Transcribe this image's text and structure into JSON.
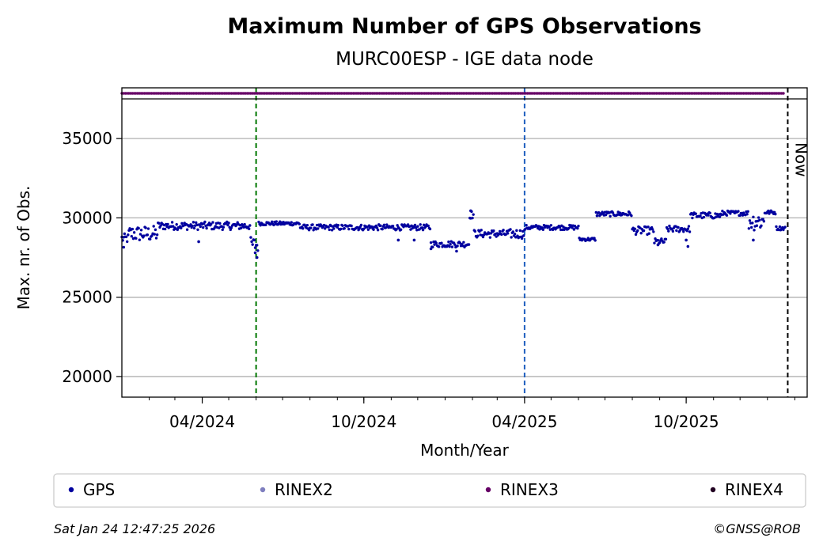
{
  "chart_data": {
    "type": "scatter",
    "title": "Maximum Number of GPS Observations",
    "subtitle": "MURC00ESP - IGE data node",
    "xlabel": "Month/Year",
    "ylabel": "Max. nr. of Obs.",
    "x_range": [
      "2024-01-01",
      "2026-02-15"
    ],
    "ylim": [
      18700,
      37500
    ],
    "y_ticks": [
      20000,
      25000,
      30000,
      35000
    ],
    "x_ticks": [
      {
        "date": "2024-04-01",
        "label": "04/2024"
      },
      {
        "date": "2024-10-01",
        "label": "10/2024"
      },
      {
        "date": "2025-04-01",
        "label": "04/2025"
      },
      {
        "date": "2025-10-01",
        "label": "10/2025"
      }
    ],
    "grid": "horizontal",
    "vlines": [
      {
        "date": "2024-06-01",
        "color": "#007700",
        "style": "dashed",
        "label": ""
      },
      {
        "date": "2025-04-01",
        "color": "#1f5fbf",
        "style": "dashed",
        "label": ""
      },
      {
        "date": "2026-01-24",
        "color": "#000000",
        "style": "dashed",
        "label": "Now"
      }
    ],
    "rinex_strip": {
      "series": "RINEX3",
      "start": "2024-01-01",
      "end": "2026-01-21",
      "color": "#660066"
    },
    "series": [
      {
        "name": "GPS",
        "color": "#00009f",
        "segments": [
          {
            "start": "2024-01-01",
            "end": "2024-01-08",
            "value": 28700,
            "jitter": 300
          },
          {
            "start": "2024-01-09",
            "end": "2024-02-10",
            "value": 29000,
            "jitter": 500
          },
          {
            "start": "2024-02-11",
            "end": "2024-05-25",
            "value": 29500,
            "jitter": 250
          },
          {
            "start": "2024-05-26",
            "end": "2024-06-03",
            "value": 28300,
            "jitter": 500
          },
          {
            "start": "2024-06-04",
            "end": "2024-07-20",
            "value": 29650,
            "jitter": 120
          },
          {
            "start": "2024-07-21",
            "end": "2024-12-15",
            "value": 29400,
            "jitter": 180
          },
          {
            "start": "2024-12-16",
            "end": "2025-01-28",
            "value": 28350,
            "jitter": 200
          },
          {
            "start": "2025-01-29",
            "end": "2025-02-02",
            "value": 30200,
            "jitter": 250
          },
          {
            "start": "2025-02-03",
            "end": "2025-03-15",
            "value": 29000,
            "jitter": 250
          },
          {
            "start": "2025-03-16",
            "end": "2025-04-01",
            "value": 29000,
            "jitter": 300
          },
          {
            "start": "2025-04-02",
            "end": "2025-06-01",
            "value": 29400,
            "jitter": 150
          },
          {
            "start": "2025-06-02",
            "end": "2025-06-20",
            "value": 28650,
            "jitter": 100
          },
          {
            "start": "2025-06-21",
            "end": "2025-07-31",
            "value": 30250,
            "jitter": 150
          },
          {
            "start": "2025-08-01",
            "end": "2025-08-25",
            "value": 29200,
            "jitter": 250
          },
          {
            "start": "2025-08-26",
            "end": "2025-09-08",
            "value": 28500,
            "jitter": 200
          },
          {
            "start": "2025-09-09",
            "end": "2025-10-05",
            "value": 29300,
            "jitter": 200
          },
          {
            "start": "2025-10-06",
            "end": "2025-11-10",
            "value": 30150,
            "jitter": 200
          },
          {
            "start": "2025-11-11",
            "end": "2025-12-10",
            "value": 30300,
            "jitter": 150
          },
          {
            "start": "2025-12-11",
            "end": "2025-12-28",
            "value": 29800,
            "jitter": 600
          },
          {
            "start": "2025-12-29",
            "end": "2026-01-10",
            "value": 30350,
            "jitter": 120
          },
          {
            "start": "2026-01-11",
            "end": "2026-01-21",
            "value": 29350,
            "jitter": 120
          }
        ],
        "outliers": [
          {
            "date": "2024-05-31",
            "value": 27800
          },
          {
            "date": "2024-06-02",
            "value": 27500
          },
          {
            "date": "2024-01-03",
            "value": 28150
          },
          {
            "date": "2024-03-28",
            "value": 28500
          },
          {
            "date": "2024-11-09",
            "value": 28600
          },
          {
            "date": "2024-11-27",
            "value": 28600
          },
          {
            "date": "2024-12-16",
            "value": 28050
          },
          {
            "date": "2025-01-14",
            "value": 27900
          },
          {
            "date": "2025-01-30",
            "value": 30450
          },
          {
            "date": "2025-03-29",
            "value": 28800
          },
          {
            "date": "2025-08-30",
            "value": 28300
          },
          {
            "date": "2025-10-01",
            "value": 28600
          },
          {
            "date": "2025-10-03",
            "value": 28200
          },
          {
            "date": "2025-12-16",
            "value": 28600
          }
        ]
      }
    ],
    "legend": {
      "position": "bottom",
      "entries": [
        {
          "name": "GPS",
          "color": "#00009f"
        },
        {
          "name": "RINEX2",
          "color": "#7f7fbf"
        },
        {
          "name": "RINEX3",
          "color": "#660066"
        },
        {
          "name": "RINEX4",
          "color": "#220022"
        }
      ]
    }
  },
  "footer": {
    "timestamp": "Sat Jan 24 12:47:25 2026",
    "copyright": "©GNSS@ROB"
  }
}
